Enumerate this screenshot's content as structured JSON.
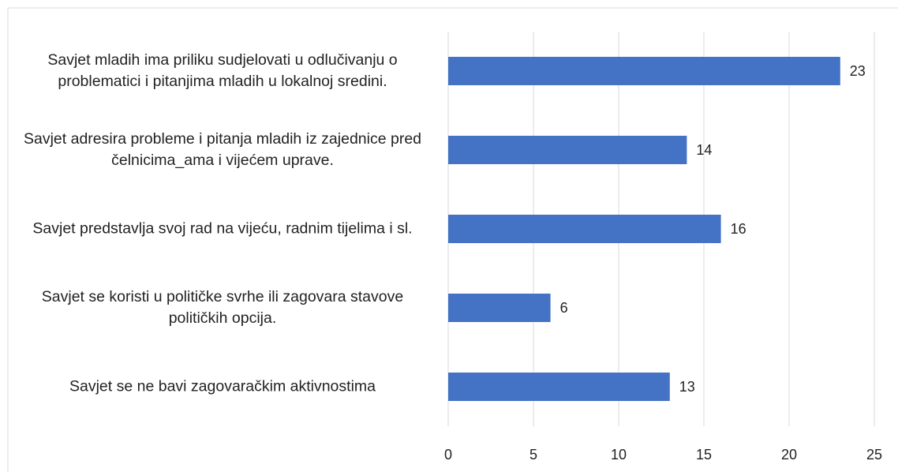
{
  "chart_data": {
    "type": "bar",
    "orientation": "horizontal",
    "categories": [
      "Savjet mladih ima priliku sudjelovati u odlučivanju o problematici i pitanjima mladih u lokalnoj sredini.",
      "Savjet adresira probleme i pitanja mladih iz zajednice pred čelnicima_ama i vijećem uprave.",
      "Savjet predstavlja svoj rad na vijeću, radnim tijelima i sl.",
      "Savjet se koristi u političke svrhe ili zagovara stavove političkih opcija.",
      "Savjet se ne bavi zagovaračkim aktivnostima"
    ],
    "values": [
      23,
      14,
      16,
      6,
      13
    ],
    "color": "#4472c4",
    "xlim": [
      0,
      25
    ],
    "xticks": [
      0,
      5,
      10,
      15,
      20,
      25
    ],
    "grid": true
  }
}
